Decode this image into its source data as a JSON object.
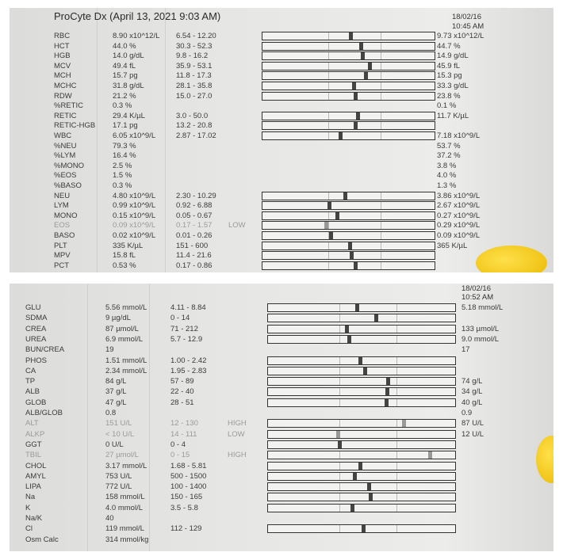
{
  "top": {
    "title": "ProCyte Dx (April 13, 2021 9:03 AM)",
    "prev_date": "18/02/16",
    "prev_time": "10:45 AM",
    "rows": [
      {
        "name": "RBC",
        "value": "8.90 x10^12/L",
        "range": "6.54 - 12.20",
        "flag": "",
        "prev": "9.73 x10^12/L",
        "bar": true
      },
      {
        "name": "HCT",
        "value": "44.0 %",
        "range": "30.3 - 52.3",
        "flag": "",
        "prev": "44.7 %",
        "bar": true
      },
      {
        "name": "HGB",
        "value": "14.0 g/dL",
        "range": "9.8 - 16.2",
        "flag": "",
        "prev": "14.9 g/dL",
        "bar": true
      },
      {
        "name": "MCV",
        "value": "49.4 fL",
        "range": "35.9 - 53.1",
        "flag": "",
        "prev": "45.9 fL",
        "bar": true
      },
      {
        "name": "MCH",
        "value": "15.7 pg",
        "range": "11.8 - 17.3",
        "flag": "",
        "prev": "15.3 pg",
        "bar": true
      },
      {
        "name": "MCHC",
        "value": "31.8 g/dL",
        "range": "28.1 - 35.8",
        "flag": "",
        "prev": "33.3 g/dL",
        "bar": true
      },
      {
        "name": "RDW",
        "value": "21.2 %",
        "range": "15.0 - 27.0",
        "flag": "",
        "prev": "23.8 %",
        "bar": true
      },
      {
        "name": "%RETIC",
        "value": "0.3 %",
        "range": "",
        "flag": "",
        "prev": "0.1 %",
        "bar": false
      },
      {
        "name": "RETIC",
        "value": "29.4 K/µL",
        "range": "3.0 - 50.0",
        "flag": "",
        "prev": "11.7 K/µL",
        "bar": true
      },
      {
        "name": "RETIC-HGB",
        "value": "17.1 pg",
        "range": "13.2 - 20.8",
        "flag": "",
        "prev": "",
        "bar": true
      },
      {
        "name": "WBC",
        "value": "6.05 x10^9/L",
        "range": "2.87 - 17.02",
        "flag": "",
        "prev": "7.18 x10^9/L",
        "bar": true
      },
      {
        "name": "%NEU",
        "value": "79.3 %",
        "range": "",
        "flag": "",
        "prev": "53.7 %",
        "bar": false
      },
      {
        "name": "%LYM",
        "value": "16.4 %",
        "range": "",
        "flag": "",
        "prev": "37.2 %",
        "bar": false
      },
      {
        "name": "%MONO",
        "value": "2.5 %",
        "range": "",
        "flag": "",
        "prev": "3.8 %",
        "bar": false
      },
      {
        "name": "%EOS",
        "value": "1.5 %",
        "range": "",
        "flag": "",
        "prev": "4.0 %",
        "bar": false
      },
      {
        "name": "%BASO",
        "value": "0.3 %",
        "range": "",
        "flag": "",
        "prev": "1.3 %",
        "bar": false
      },
      {
        "name": "NEU",
        "value": "4.80 x10^9/L",
        "range": "2.30 - 10.29",
        "flag": "",
        "prev": "3.86 x10^9/L",
        "bar": true
      },
      {
        "name": "LYM",
        "value": "0.99 x10^9/L",
        "range": "0.92 - 6.88",
        "flag": "",
        "prev": "2.67 x10^9/L",
        "bar": true
      },
      {
        "name": "MONO",
        "value": "0.15 x10^9/L",
        "range": "0.05 - 0.67",
        "flag": "",
        "prev": "0.27 x10^9/L",
        "bar": true
      },
      {
        "name": "EOS",
        "value": "0.09 x10^9/L",
        "range": "0.17 - 1.57",
        "flag": "LOW",
        "prev": "0.29 x10^9/L",
        "bar": true
      },
      {
        "name": "BASO",
        "value": "0.02 x10^9/L",
        "range": "0.01 - 0.26",
        "flag": "",
        "prev": "0.09 x10^9/L",
        "bar": true
      },
      {
        "name": "PLT",
        "value": "335 K/µL",
        "range": "151 - 600",
        "flag": "",
        "prev": "365 K/µL",
        "bar": true
      },
      {
        "name": "MPV",
        "value": "15.8 fL",
        "range": "11.4 - 21.6",
        "flag": "",
        "prev": "",
        "bar": true
      },
      {
        "name": "PCT",
        "value": "0.53 %",
        "range": "0.17 - 0.86",
        "flag": "",
        "prev": "",
        "bar": true
      }
    ]
  },
  "bottom": {
    "prev_date": "18/02/16",
    "prev_time": "10:52 AM",
    "rows": [
      {
        "name": "GLU",
        "value": "5.56 mmol/L",
        "range": "4.11 - 8.84",
        "flag": "",
        "prev": "5.18 mmol/L",
        "bar": true
      },
      {
        "name": "SDMA",
        "value": "9 µg/dL",
        "range": "0 - 14",
        "flag": "",
        "prev": "",
        "bar": true
      },
      {
        "name": "CREA",
        "value": "87 µmol/L",
        "range": "71 - 212",
        "flag": "",
        "prev": "133 µmol/L",
        "bar": true
      },
      {
        "name": "UREA",
        "value": "6.9 mmol/L",
        "range": "5.7 - 12.9",
        "flag": "",
        "prev": "9.0 mmol/L",
        "bar": true
      },
      {
        "name": "BUN/CREA",
        "value": "19",
        "range": "",
        "flag": "",
        "prev": "17",
        "bar": false
      },
      {
        "name": "PHOS",
        "value": "1.51 mmol/L",
        "range": "1.00 - 2.42",
        "flag": "",
        "prev": "",
        "bar": true
      },
      {
        "name": "CA",
        "value": "2.34 mmol/L",
        "range": "1.95 - 2.83",
        "flag": "",
        "prev": "",
        "bar": true
      },
      {
        "name": "TP",
        "value": "84 g/L",
        "range": "57 - 89",
        "flag": "",
        "prev": "74 g/L",
        "bar": true
      },
      {
        "name": "ALB",
        "value": "37 g/L",
        "range": "22 - 40",
        "flag": "",
        "prev": "34 g/L",
        "bar": true
      },
      {
        "name": "GLOB",
        "value": "47 g/L",
        "range": "28 - 51",
        "flag": "",
        "prev": "40 g/L",
        "bar": true
      },
      {
        "name": "ALB/GLOB",
        "value": "0.8",
        "range": "",
        "flag": "",
        "prev": "0.9",
        "bar": false
      },
      {
        "name": "ALT",
        "value": "151 U/L",
        "range": "12 - 130",
        "flag": "HIGH",
        "prev": "87 U/L",
        "bar": true
      },
      {
        "name": "ALKP",
        "value": "< 10 U/L",
        "range": "14 - 111",
        "flag": "LOW",
        "prev": "12 U/L",
        "bar": true
      },
      {
        "name": "GGT",
        "value": "0 U/L",
        "range": "0 - 4",
        "flag": "",
        "prev": "",
        "bar": true
      },
      {
        "name": "TBIL",
        "value": "27 µmol/L",
        "range": "0 - 15",
        "flag": "HIGH",
        "prev": "",
        "bar": true
      },
      {
        "name": "CHOL",
        "value": "3.17 mmol/L",
        "range": "1.68 - 5.81",
        "flag": "",
        "prev": "",
        "bar": true
      },
      {
        "name": "AMYL",
        "value": "753 U/L",
        "range": "500 - 1500",
        "flag": "",
        "prev": "",
        "bar": true
      },
      {
        "name": "LIPA",
        "value": "772 U/L",
        "range": "100 - 1400",
        "flag": "",
        "prev": "",
        "bar": true
      },
      {
        "name": "Na",
        "value": "158 mmol/L",
        "range": "150 - 165",
        "flag": "",
        "prev": "",
        "bar": true
      },
      {
        "name": "K",
        "value": "4.0 mmol/L",
        "range": "3.5 - 5.8",
        "flag": "",
        "prev": "",
        "bar": true
      },
      {
        "name": "Na/K",
        "value": "40",
        "range": "",
        "flag": "",
        "prev": "",
        "bar": false
      },
      {
        "name": "Cl",
        "value": "119 mmol/L",
        "range": "112 - 129",
        "flag": "",
        "prev": "",
        "bar": true
      },
      {
        "name": "Osm Calc",
        "value": "314 mmol/kg",
        "range": "",
        "flag": "",
        "prev": "",
        "bar": false
      }
    ]
  },
  "colors": {
    "paper": "#e6e6e4",
    "ink": "#333333",
    "flagged": "#9a9a9a",
    "nail": "#f5c800"
  }
}
